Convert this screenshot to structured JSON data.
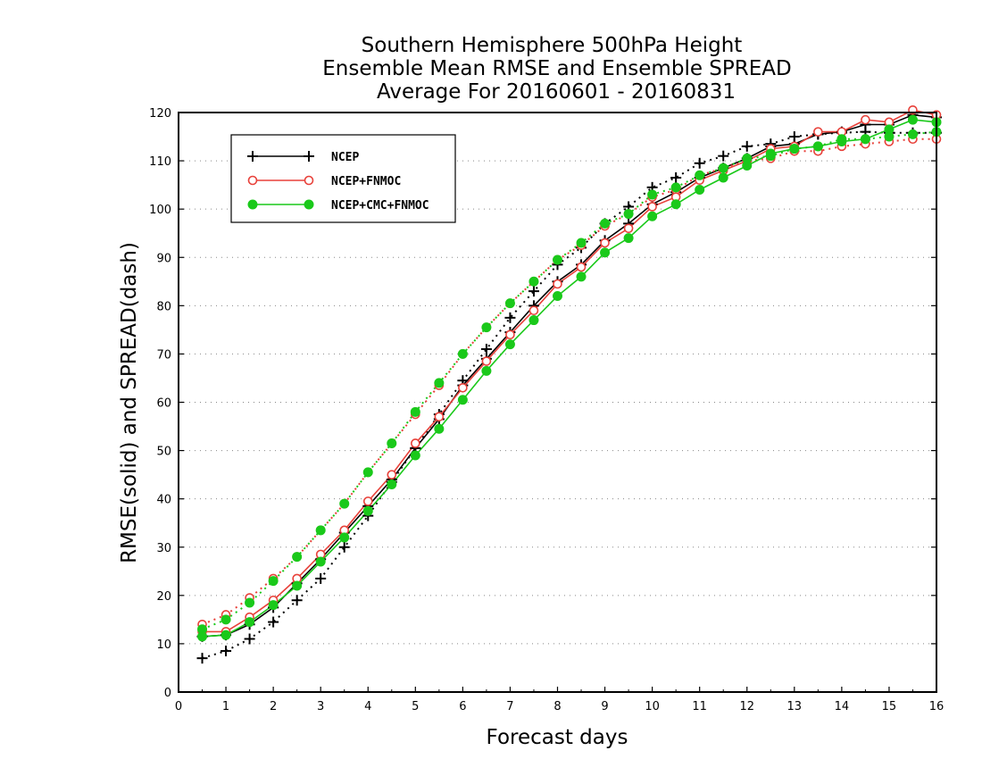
{
  "chart_data": {
    "type": "line",
    "title": [
      "Southern Hemisphere 500hPa Height",
      "Ensemble Mean RMSE and Ensemble SPREAD",
      "Average For 20160601 - 20160831"
    ],
    "xlabel": "Forecast days",
    "ylabel": "RMSE(solid) and SPREAD(dash)",
    "xlim": [
      0,
      16
    ],
    "ylim": [
      0,
      120
    ],
    "xticks": [
      0,
      1,
      2,
      3,
      4,
      5,
      6,
      7,
      8,
      9,
      10,
      11,
      12,
      13,
      14,
      15,
      16
    ],
    "yticks": [
      0,
      10,
      20,
      30,
      40,
      50,
      60,
      70,
      80,
      90,
      100,
      110,
      120
    ],
    "grid": "horizontal-dotted",
    "legend_position": "top-left",
    "x": [
      0.5,
      1,
      1.5,
      2,
      2.5,
      3,
      3.5,
      4,
      4.5,
      5,
      5.5,
      6,
      6.5,
      7,
      7.5,
      8,
      8.5,
      9,
      9.5,
      10,
      10.5,
      11,
      11.5,
      12,
      12.5,
      13,
      13.5,
      14,
      14.5,
      15,
      15.5,
      16
    ],
    "series": [
      {
        "name": "NCEP",
        "color": "#000000",
        "marker": "plus",
        "rmse": [
          11.5,
          11.8,
          14.0,
          17.5,
          22.5,
          27.5,
          33.0,
          38.5,
          44.0,
          50.5,
          56.5,
          63.5,
          69.0,
          74.5,
          80.0,
          85.0,
          88.5,
          93.5,
          97.0,
          101.0,
          103.5,
          106.5,
          108.5,
          110.5,
          113.0,
          113.5,
          115.5,
          116.0,
          117.5,
          117.5,
          119.5,
          119.0
        ],
        "spread": [
          7.0,
          8.5,
          11.0,
          14.5,
          19.0,
          23.5,
          30.0,
          36.5,
          43.5,
          50.5,
          57.5,
          64.5,
          71.0,
          77.5,
          83.0,
          88.5,
          92.0,
          97.0,
          100.5,
          104.5,
          106.5,
          109.5,
          111.0,
          113.0,
          113.5,
          115.0,
          115.5,
          115.8,
          116.0,
          115.8,
          115.8,
          115.8
        ]
      },
      {
        "name": "NCEP+FNMOC",
        "color": "#e8413a",
        "marker": "open-circle",
        "rmse": [
          12.5,
          12.5,
          15.5,
          19.0,
          23.5,
          28.5,
          33.5,
          39.5,
          45.0,
          51.5,
          57.0,
          63.0,
          68.5,
          74.0,
          79.0,
          84.5,
          88.0,
          93.0,
          96.0,
          100.5,
          102.5,
          106.0,
          108.0,
          110.0,
          112.5,
          113.0,
          116.0,
          116.0,
          118.5,
          118.0,
          120.5,
          119.5
        ],
        "spread": [
          14.0,
          16.0,
          19.5,
          23.5,
          28.0,
          33.5,
          39.0,
          45.5,
          51.5,
          57.5,
          63.5,
          70.0,
          75.5,
          80.5,
          85.0,
          89.5,
          92.5,
          96.5,
          99.0,
          102.5,
          104.0,
          107.0,
          108.5,
          110.0,
          110.5,
          112.0,
          112.0,
          113.0,
          113.5,
          114.0,
          114.5,
          114.5
        ]
      },
      {
        "name": "NCEP+CMC+FNMOC",
        "color": "#1ac91a",
        "marker": "filled-circle",
        "rmse": [
          11.5,
          11.8,
          14.5,
          18.0,
          22.0,
          27.0,
          32.0,
          37.5,
          43.0,
          49.0,
          54.5,
          60.5,
          66.5,
          72.0,
          77.0,
          82.0,
          86.0,
          91.0,
          94.0,
          98.5,
          101.0,
          104.0,
          106.5,
          109.0,
          111.5,
          112.5,
          113.0,
          114.0,
          114.5,
          116.5,
          118.5,
          118.0
        ],
        "spread": [
          13.0,
          15.0,
          18.5,
          23.0,
          28.0,
          33.5,
          39.0,
          45.5,
          51.5,
          58.0,
          64.0,
          70.0,
          75.5,
          80.5,
          85.0,
          89.5,
          93.0,
          97.0,
          99.0,
          103.0,
          104.5,
          107.0,
          108.5,
          110.5,
          111.0,
          112.5,
          113.0,
          114.5,
          114.5,
          115.0,
          115.5,
          116.0
        ]
      }
    ]
  }
}
